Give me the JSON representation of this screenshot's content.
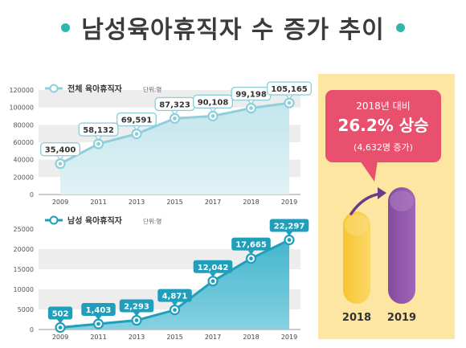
{
  "title": "남성육아휴직자 수 증가 추이",
  "colors": {
    "accent_teal": "#2fb6ad",
    "total_line": "#8fd0dc",
    "male_line": "#1f9fbb",
    "callout_pink": "#e8506e",
    "panel_bg": "#fde6a2",
    "bar_2018": "#f6c63b",
    "bar_2019": "#8d4fa3"
  },
  "chart_data": [
    {
      "type": "area",
      "legend": "전체 육아휴직자",
      "unit": "단위:명",
      "categories": [
        "2009",
        "2011",
        "2013",
        "2015",
        "2017",
        "2018",
        "2019"
      ],
      "values": [
        35400,
        58132,
        69591,
        87323,
        90108,
        99198,
        105165
      ],
      "value_labels": [
        "35,400",
        "58,132",
        "69,591",
        "87,323",
        "90,108",
        "99,198",
        "105,165"
      ],
      "ylim": [
        0,
        120000
      ],
      "yticks": [
        0,
        20000,
        40000,
        60000,
        80000,
        100000,
        120000
      ],
      "ytick_labels": [
        "0",
        "20000",
        "40000",
        "60000",
        "80000",
        "100000",
        "120000"
      ],
      "grid": "alternating bands"
    },
    {
      "type": "area",
      "legend": "남성 육아휴직자",
      "unit": "단위:명",
      "categories": [
        "2009",
        "2011",
        "2013",
        "2015",
        "2017",
        "2018",
        "2019"
      ],
      "values": [
        502,
        1403,
        2293,
        4871,
        12042,
        17665,
        22297
      ],
      "value_labels": [
        "502",
        "1,403",
        "2,293",
        "4,871",
        "12,042",
        "17,665",
        "22,297"
      ],
      "ylim": [
        0,
        25000
      ],
      "yticks": [
        0,
        5000,
        10000,
        15000,
        20000,
        25000
      ],
      "ytick_labels": [
        "0",
        "5000",
        "10000",
        "15000",
        "20000",
        "25000"
      ],
      "grid": "alternating bands"
    },
    {
      "type": "bar",
      "categories": [
        "2018",
        "2019"
      ],
      "values": [
        17665,
        22297
      ],
      "callout": {
        "line1": "2018년 대비",
        "line2": "26.2% 상승",
        "line3": "(4,632명 증가)"
      }
    }
  ]
}
